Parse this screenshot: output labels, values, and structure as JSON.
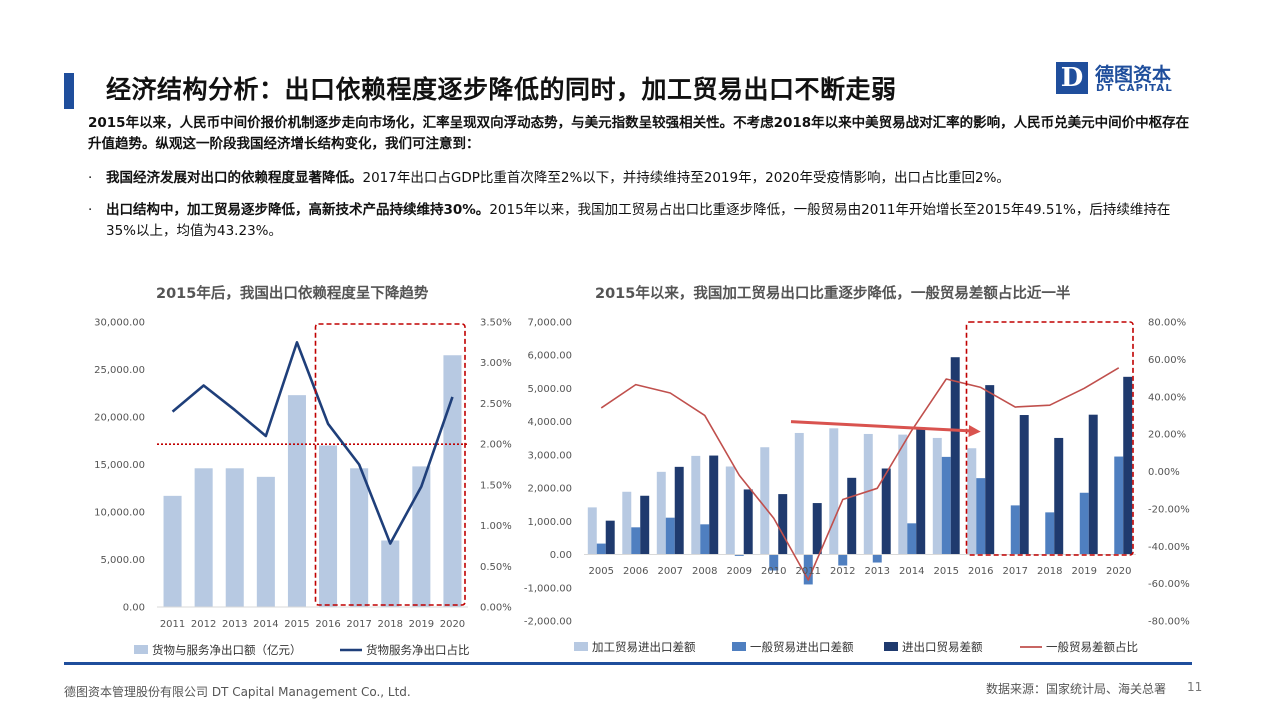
{
  "header": {
    "title": "经济结构分析：出口依赖程度逐步降低的同时，加工贸易出口不断走弱",
    "logo_cn": "德图资本",
    "logo_en": "DT CAPITAL",
    "logo_mark": "D"
  },
  "intro": "2015年以来，人民币中间价报价机制逐步走向市场化，汇率呈现双向浮动态势，与美元指数呈较强相关性。不考虑2018年以来中美贸易战对汇率的影响，人民币兑美元中间价中枢存在升值趋势。纵观这一阶段我国经济增长结构变化，我们可注意到：",
  "bullets": [
    {
      "dot": "·",
      "bold": "我国经济发展对出口的依赖程度显著降低。",
      "text": "2017年出口占GDP比重首次降至2%以下，并持续维持至2019年，2020年受疫情影响，出口占比重回2%。"
    },
    {
      "dot": "·",
      "bold": "出口结构中，加工贸易逐步降低，高新技术产品持续维持30%。",
      "text": "2015年以来，我国加工贸易占出口比重逐步降低，一般贸易由2011年开始增长至2015年49.51%，后持续维持在35%以上，均值为43.23%。"
    }
  ],
  "chart_data": [
    {
      "type": "bar",
      "title": "2015年后，我国出口依赖程度呈下降趋势",
      "categories": [
        "2011",
        "2012",
        "2013",
        "2014",
        "2015",
        "2016",
        "2017",
        "2018",
        "2019",
        "2020"
      ],
      "series": [
        {
          "name": "货物与服务净出口额（亿元）",
          "type": "bar",
          "axis": "left",
          "color": "#b7c9e2",
          "values": [
            11700,
            14600,
            14600,
            13700,
            22300,
            17000,
            14600,
            7000,
            14800,
            26500
          ]
        },
        {
          "name": "货物服务净出口占比",
          "type": "line",
          "axis": "right",
          "color": "#1f3f7a",
          "values": [
            2.4,
            2.72,
            2.42,
            2.1,
            3.25,
            2.25,
            1.75,
            0.78,
            1.48,
            2.58
          ]
        }
      ],
      "y_left": {
        "min": 0,
        "max": 30000,
        "ticks": [
          "0.00",
          "5,000.00",
          "10,000.00",
          "15,000.00",
          "20,000.00",
          "25,000.00",
          "30,000.00"
        ]
      },
      "y_right": {
        "min": 0,
        "max": 3.5,
        "ticks": [
          "0.00%",
          "0.50%",
          "1.00%",
          "1.50%",
          "2.00%",
          "2.50%",
          "3.00%",
          "3.50%"
        ]
      },
      "reference_line": {
        "axis": "right",
        "value": 2.0,
        "color": "#c00000",
        "style": "dotted"
      },
      "highlight_box": {
        "from": "2016",
        "to": "2020",
        "color": "#c00000",
        "style": "dashed"
      },
      "grid": false,
      "legend": "bottom"
    },
    {
      "type": "bar",
      "title": "2015年以来，我国加工贸易出口比重逐步降低，一般贸易差额占比近一半",
      "categories": [
        "2005",
        "2006",
        "2007",
        "2008",
        "2009",
        "2010",
        "2011",
        "2012",
        "2013",
        "2014",
        "2015",
        "2016",
        "2017",
        "2018",
        "2019",
        "2020"
      ],
      "series": [
        {
          "name": "加工贸易进出口差额",
          "type": "bar",
          "axis": "left",
          "color": "#b7c9e2",
          "values": [
            1420,
            1890,
            2490,
            2970,
            2650,
            3230,
            3660,
            3800,
            3630,
            3610,
            3510,
            3200,
            null,
            null,
            null,
            null
          ]
        },
        {
          "name": "一般贸易进出口差额",
          "type": "bar",
          "axis": "left",
          "color": "#4f7fc0",
          "values": [
            330,
            820,
            1110,
            910,
            -40,
            -480,
            -900,
            -330,
            -240,
            940,
            2940,
            2300,
            1480,
            1270,
            1860,
            2950
          ]
        },
        {
          "name": "进出口贸易差额",
          "type": "bar",
          "axis": "left",
          "color": "#1f3a6e",
          "values": [
            1020,
            1770,
            2640,
            2980,
            1960,
            1820,
            1550,
            2310,
            2590,
            3830,
            5940,
            5100,
            4200,
            3510,
            4210,
            5350
          ]
        },
        {
          "name": "一般贸易差额占比",
          "type": "line",
          "axis": "right",
          "color": "#c0504d",
          "values": [
            34,
            46.5,
            42,
            30,
            -2,
            -25,
            -58,
            -15,
            -9,
            22,
            49.5,
            45,
            34.5,
            35.5,
            44.5,
            55.5
          ]
        }
      ],
      "y_left": {
        "min": -2000,
        "max": 7000,
        "ticks": [
          "-2,000.00",
          "-1,000.00",
          "0.00",
          "1,000.00",
          "2,000.00",
          "3,000.00",
          "4,000.00",
          "5,000.00",
          "6,000.00",
          "7,000.00"
        ]
      },
      "y_right": {
        "min": -80,
        "max": 80,
        "ticks": [
          "-80.00%",
          "-60.00%",
          "-40.00%",
          "-20.00%",
          "0.00%",
          "20.00%",
          "40.00%",
          "60.00%",
          "80.00%"
        ]
      },
      "annotation_arrow": {
        "from": "2011",
        "to": "2016",
        "from_value": 4000,
        "to_value": 3700,
        "color": "#d9534f"
      },
      "highlight_box": {
        "from": "2016",
        "to": "2020",
        "color": "#c00000",
        "style": "dashed"
      },
      "grid": false,
      "legend": "bottom"
    }
  ],
  "footer": {
    "company": "德图资本管理股份有限公司 DT Capital Management Co., Ltd.",
    "source": "数据来源：国家统计局、海关总署",
    "page": "11"
  }
}
